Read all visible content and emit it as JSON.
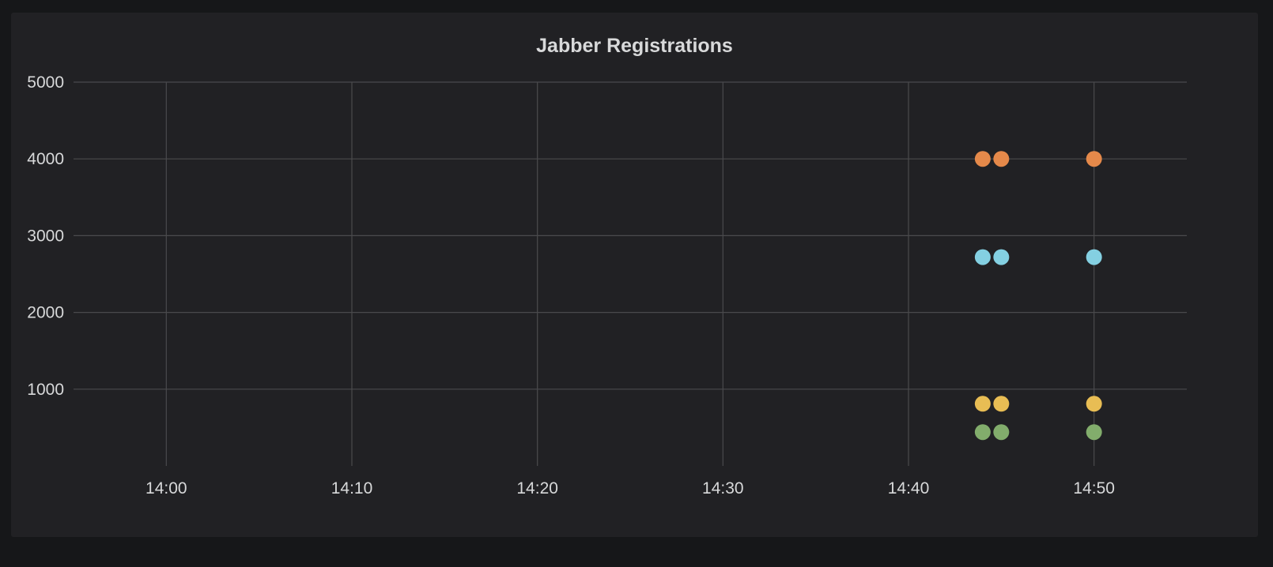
{
  "chart_data": {
    "type": "scatter",
    "title": "Jabber Registrations",
    "xlabel": "",
    "ylabel": "",
    "x_axis": {
      "type": "time",
      "range": [
        "13:55",
        "14:55"
      ],
      "tick_labels": [
        "14:00",
        "14:10",
        "14:20",
        "14:30",
        "14:40",
        "14:50"
      ]
    },
    "y_axis": {
      "range": [
        0,
        5000
      ],
      "tick_labels": [
        "1000",
        "2000",
        "3000",
        "4000",
        "5000"
      ]
    },
    "grid": true,
    "legend": "none",
    "series": [
      {
        "color": "#e5894a",
        "points": [
          {
            "x": "14:44",
            "y": 4000
          },
          {
            "x": "14:45",
            "y": 4000
          },
          {
            "x": "14:50",
            "y": 4000
          }
        ]
      },
      {
        "color": "#84d0e2",
        "points": [
          {
            "x": "14:44",
            "y": 2720
          },
          {
            "x": "14:45",
            "y": 2720
          },
          {
            "x": "14:50",
            "y": 2720
          }
        ]
      },
      {
        "color": "#e8bd54",
        "points": [
          {
            "x": "14:44",
            "y": 810
          },
          {
            "x": "14:45",
            "y": 810
          },
          {
            "x": "14:50",
            "y": 810
          }
        ]
      },
      {
        "color": "#82ad6c",
        "points": [
          {
            "x": "14:44",
            "y": 440
          },
          {
            "x": "14:45",
            "y": 440
          },
          {
            "x": "14:50",
            "y": 440
          }
        ]
      }
    ]
  }
}
